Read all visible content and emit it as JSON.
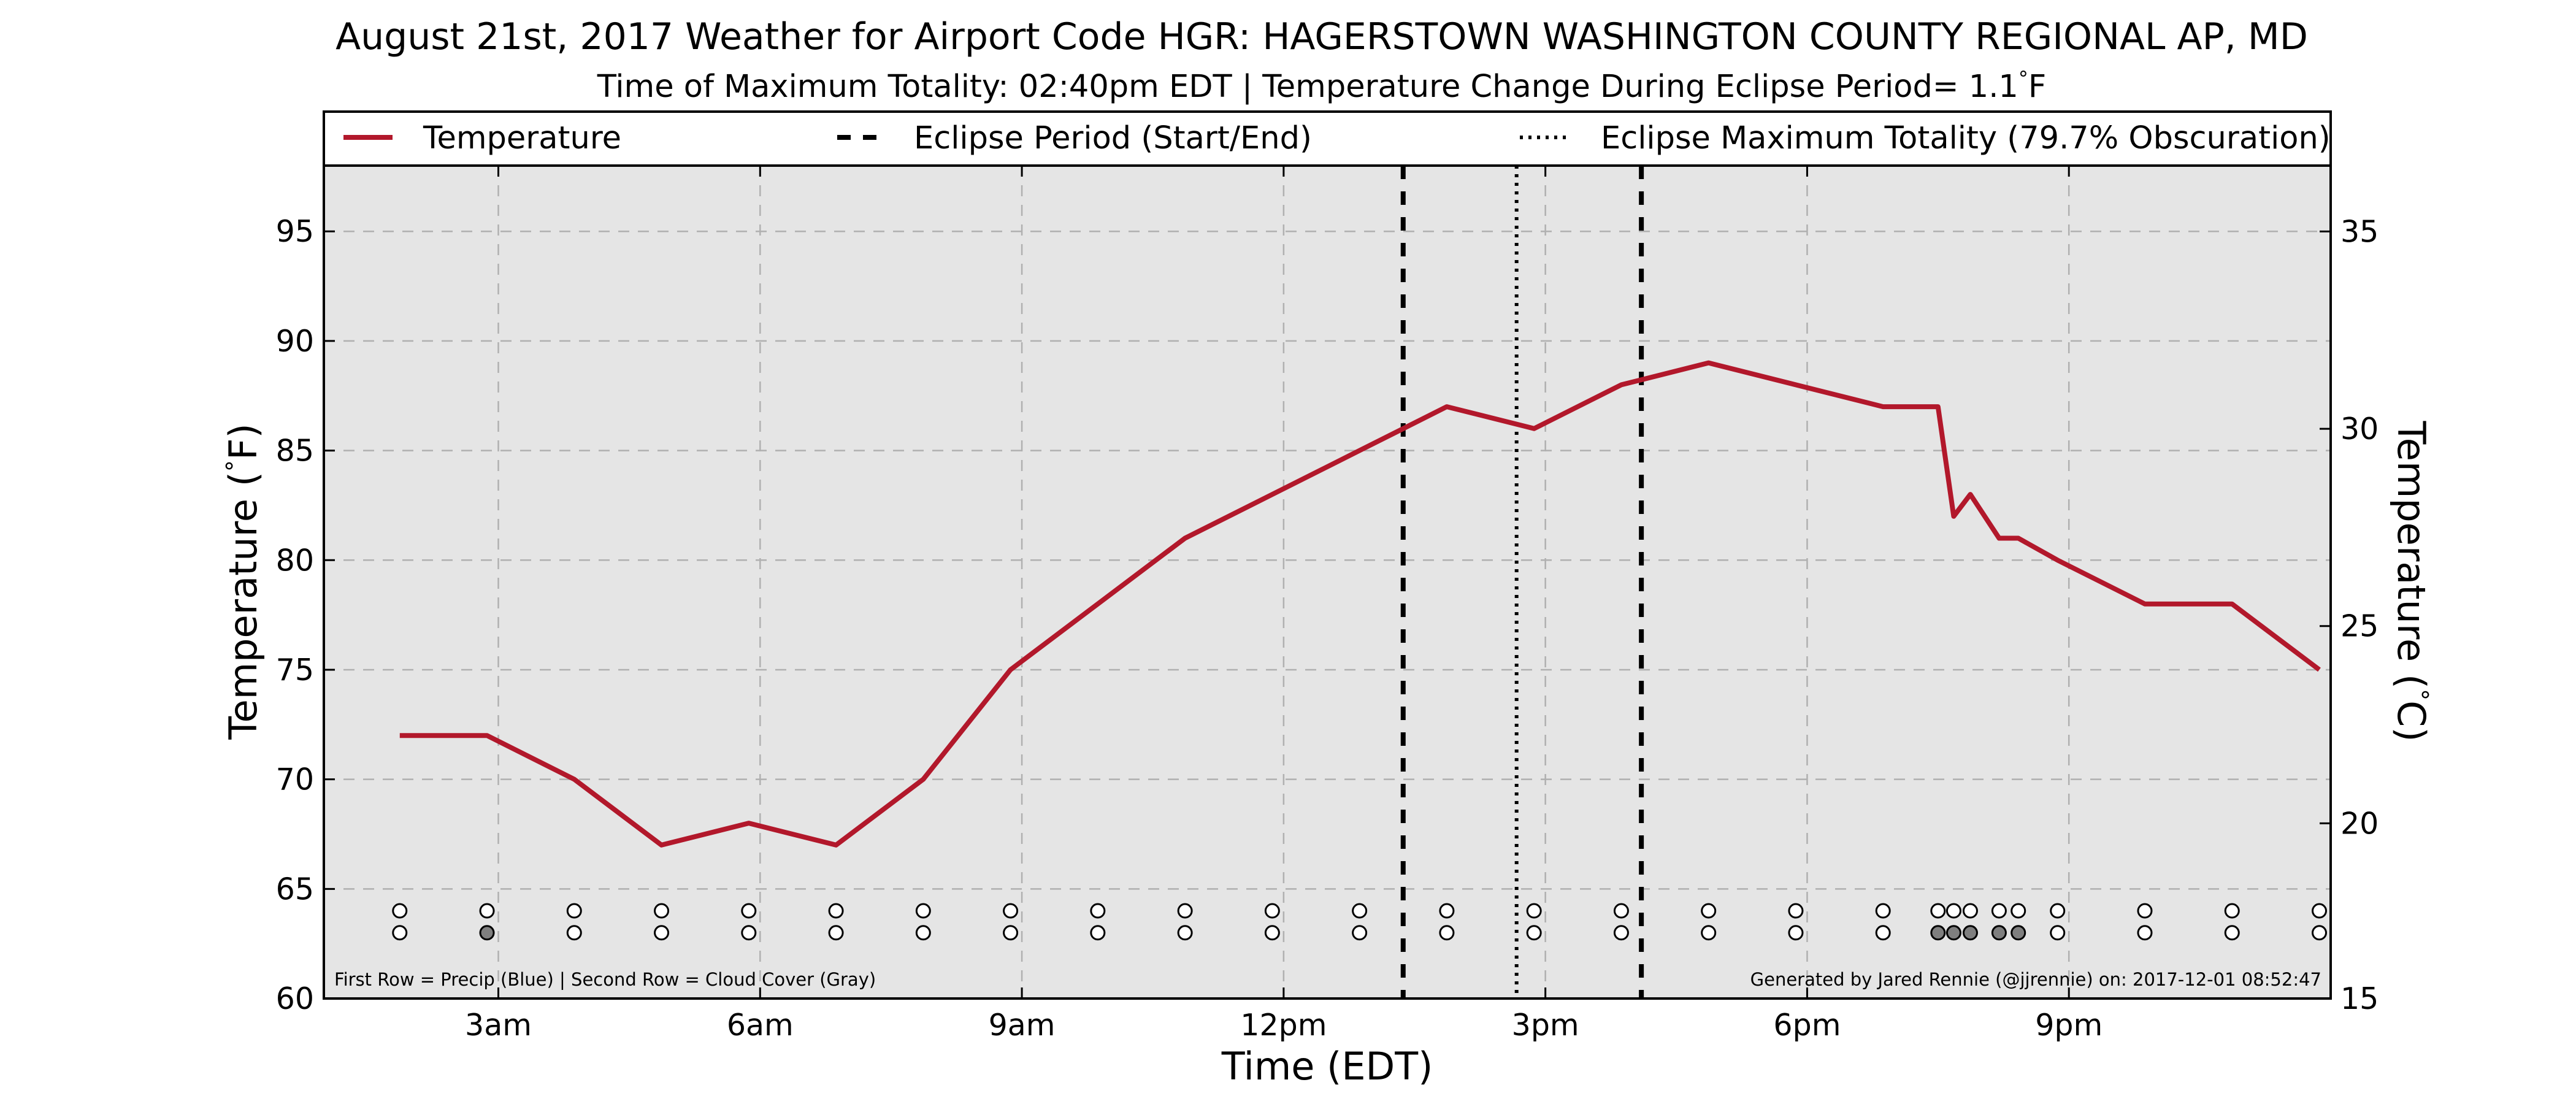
{
  "chart_data": {
    "type": "line",
    "title": "August 21st, 2017 Weather for Airport Code HGR: HAGERSTOWN WASHINGTON COUNTY REGIONAL AP, MD",
    "subtitle_text": "Time of Maximum Totality: 02:40pm EDT | Temperature Change During Eclipse Period= 1.1",
    "subtitle_unit": "F",
    "xlabel": "Time (EDT)",
    "ylabel_left_text": "Temperature (",
    "ylabel_right_text": "Temperature (",
    "ylabel_unit": "F)",
    "ylabel_right_unit": "C)",
    "xlim": [
      1.0,
      24.0
    ],
    "ylim": [
      60,
      98
    ],
    "y2lim": [
      15.56,
      36.67
    ],
    "grid": true,
    "legend_placement": "top",
    "x_ticks": [
      {
        "value": 3,
        "label": "3am"
      },
      {
        "value": 6,
        "label": "6am"
      },
      {
        "value": 9,
        "label": "9am"
      },
      {
        "value": 12,
        "label": "12pm"
      },
      {
        "value": 15,
        "label": "3pm"
      },
      {
        "value": 18,
        "label": "6pm"
      },
      {
        "value": 21,
        "label": "9pm"
      }
    ],
    "y_ticks": [
      {
        "value": 60,
        "label": "60"
      },
      {
        "value": 65,
        "label": "65"
      },
      {
        "value": 70,
        "label": "70"
      },
      {
        "value": 75,
        "label": "75"
      },
      {
        "value": 80,
        "label": "80"
      },
      {
        "value": 85,
        "label": "85"
      },
      {
        "value": 90,
        "label": "90"
      },
      {
        "value": 95,
        "label": "95"
      }
    ],
    "y2_ticks": [
      {
        "value": 15,
        "label": "15"
      },
      {
        "value": 20,
        "label": "20"
      },
      {
        "value": 25,
        "label": "25"
      },
      {
        "value": 30,
        "label": "30"
      },
      {
        "value": 35,
        "label": "35"
      }
    ],
    "legend": {
      "temperature": "Temperature",
      "eclipse_period": "Eclipse Period (Start/End)",
      "eclipse_max": "Eclipse Maximum Totality (79.7% Obscuration)"
    },
    "series": [
      {
        "name": "Temperature",
        "color": "#b2182b",
        "x": [
          1.87,
          2.87,
          3.87,
          4.87,
          5.87,
          6.87,
          7.87,
          8.87,
          9.87,
          10.87,
          11.87,
          12.87,
          13.87,
          14.87,
          15.87,
          16.87,
          17.87,
          18.87,
          19.5,
          19.68,
          19.87,
          20.2,
          20.42,
          20.87,
          21.87,
          22.87,
          23.87
        ],
        "y": [
          72,
          72,
          70,
          67,
          68,
          67,
          70,
          75,
          78,
          81,
          83,
          85,
          87,
          86,
          88,
          89,
          88,
          87,
          87,
          82,
          83,
          81,
          81,
          80,
          78,
          78,
          75
        ]
      }
    ],
    "eclipse_start": 13.37,
    "eclipse_end": 16.1,
    "eclipse_max": 14.67,
    "row_positions": {
      "precip_row": 64.0,
      "cloud_row": 63.0
    },
    "precip_x": [
      1.87,
      2.87,
      3.87,
      4.87,
      5.87,
      6.87,
      7.87,
      8.87,
      9.87,
      10.87,
      11.87,
      12.87,
      13.87,
      14.87,
      15.87,
      16.87,
      17.87,
      18.87,
      19.5,
      19.68,
      19.87,
      20.2,
      20.42,
      20.87,
      21.87,
      22.87,
      23.87
    ],
    "cloud_x": [
      1.87,
      2.87,
      3.87,
      4.87,
      5.87,
      6.87,
      7.87,
      8.87,
      9.87,
      10.87,
      11.87,
      12.87,
      13.87,
      14.87,
      15.87,
      16.87,
      17.87,
      18.87,
      19.5,
      19.68,
      19.87,
      20.2,
      20.42,
      20.87,
      21.87,
      22.87,
      23.87
    ],
    "cloud_filled": [
      false,
      true,
      false,
      false,
      false,
      false,
      false,
      false,
      false,
      false,
      false,
      false,
      false,
      false,
      false,
      false,
      false,
      false,
      true,
      true,
      true,
      true,
      true,
      false,
      false,
      false,
      false
    ],
    "note_left": "First Row = Precip (Blue) | Second Row = Cloud Cover (Gray)",
    "note_right": "Generated by Jared Rennie (@jjrennie) on: 2017-12-01 08:52:47",
    "colors": {
      "plot_background": "#e5e5e5",
      "temperature_line": "#b2182b",
      "cloud_fill": "#7f7f7f",
      "grid": "#b0b0b0"
    }
  }
}
